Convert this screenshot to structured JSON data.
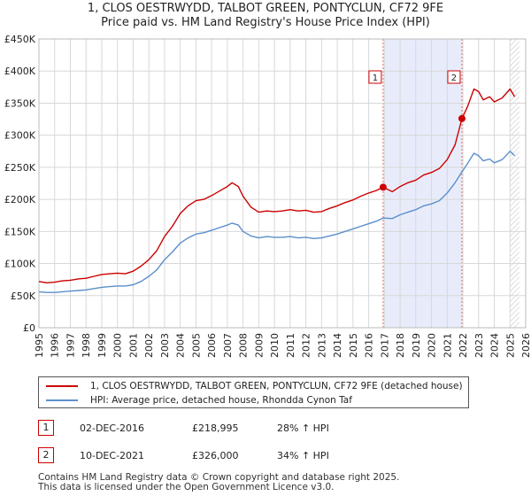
{
  "header": {
    "title_line1": "1, CLOS OESTRWYDD, TALBOT GREEN, PONTYCLUN, CF72 9FE",
    "title_line2": "Price paid vs. HM Land Registry's House Price Index (HPI)"
  },
  "chart_data": {
    "type": "line",
    "title": "Price paid vs. HM Land Registry's House Price Index (HPI)",
    "xlim": [
      1995,
      2026
    ],
    "ylim": [
      0,
      450000
    ],
    "x_ticks": [
      1995,
      1996,
      1997,
      1998,
      1999,
      2000,
      2001,
      2002,
      2003,
      2004,
      2005,
      2006,
      2007,
      2008,
      2009,
      2010,
      2011,
      2012,
      2013,
      2014,
      2015,
      2016,
      2017,
      2018,
      2019,
      2020,
      2021,
      2022,
      2023,
      2024,
      2025,
      2026
    ],
    "x_tick_labels": [
      "1995",
      "1996",
      "1997",
      "1998",
      "1999",
      "2000",
      "2001",
      "2002",
      "2003",
      "2004",
      "2005",
      "2006",
      "2007",
      "2008",
      "2009",
      "2010",
      "2011",
      "2012",
      "2013",
      "2014",
      "2015",
      "2016",
      "2017",
      "2018",
      "2019",
      "2020",
      "2021",
      "2022",
      "2023",
      "2024",
      "2025",
      "2026"
    ],
    "y_ticks": [
      0,
      50000,
      100000,
      150000,
      200000,
      250000,
      300000,
      350000,
      400000,
      450000
    ],
    "y_tick_labels": [
      "£0",
      "£50K",
      "£100K",
      "£150K",
      "£200K",
      "£250K",
      "£300K",
      "£350K",
      "£400K",
      "£450K"
    ],
    "grid": true,
    "shaded_periods": [
      {
        "label": "1",
        "from": 2016.92,
        "to": 2021.94
      },
      {
        "label": "hatched",
        "from": 2025.0,
        "to": 2025.6
      }
    ],
    "series": [
      {
        "name": "1, CLOS OESTRWYDD, TALBOT GREEN, PONTYCLUN, CF72 9FE (detached house)",
        "color": "#cc0000",
        "x": [
          1995,
          1995.5,
          1996,
          1996.5,
          1997,
          1997.5,
          1998,
          1998.5,
          1999,
          1999.5,
          2000,
          2000.5,
          2001,
          2001.5,
          2002,
          2002.5,
          2003,
          2003.5,
          2004,
          2004.5,
          2005,
          2005.5,
          2006,
          2006.5,
          2007,
          2007.3,
          2007.7,
          2008,
          2008.5,
          2009,
          2009.5,
          2010,
          2010.5,
          2011,
          2011.5,
          2012,
          2012.5,
          2013,
          2013.5,
          2014,
          2014.5,
          2015,
          2015.5,
          2016,
          2016.5,
          2016.92,
          2017.5,
          2018,
          2018.5,
          2019,
          2019.5,
          2020,
          2020.5,
          2021,
          2021.5,
          2021.94,
          2022.3,
          2022.7,
          2023,
          2023.3,
          2023.7,
          2024,
          2024.5,
          2025,
          2025.3
        ],
        "values": [
          72000,
          70000,
          71000,
          73000,
          74000,
          76000,
          77000,
          80000,
          83000,
          84000,
          85000,
          84000,
          88000,
          96000,
          106000,
          120000,
          142000,
          158000,
          178000,
          190000,
          198000,
          200000,
          206000,
          213000,
          220000,
          226000,
          220000,
          205000,
          188000,
          180000,
          182000,
          181000,
          182000,
          184000,
          182000,
          183000,
          180000,
          181000,
          186000,
          190000,
          195000,
          199000,
          205000,
          210000,
          214000,
          218995,
          212000,
          220000,
          226000,
          230000,
          238000,
          242000,
          248000,
          262000,
          285000,
          326000,
          345000,
          372000,
          368000,
          355000,
          360000,
          352000,
          358000,
          372000,
          360000
        ]
      },
      {
        "name": "HPI: Average price, detached house, Rhondda Cynon Taf",
        "color": "#5b8fcc",
        "x": [
          1995,
          1995.5,
          1996,
          1996.5,
          1997,
          1997.5,
          1998,
          1998.5,
          1999,
          1999.5,
          2000,
          2000.5,
          2001,
          2001.5,
          2002,
          2002.5,
          2003,
          2003.5,
          2004,
          2004.5,
          2005,
          2005.5,
          2006,
          2006.5,
          2007,
          2007.3,
          2007.7,
          2008,
          2008.5,
          2009,
          2009.5,
          2010,
          2010.5,
          2011,
          2011.5,
          2012,
          2012.5,
          2013,
          2013.5,
          2014,
          2014.5,
          2015,
          2015.5,
          2016,
          2016.5,
          2016.92,
          2017.5,
          2018,
          2018.5,
          2019,
          2019.5,
          2020,
          2020.5,
          2021,
          2021.5,
          2021.94,
          2022.3,
          2022.7,
          2023,
          2023.3,
          2023.7,
          2024,
          2024.5,
          2025,
          2025.3
        ],
        "values": [
          56000,
          55000,
          55000,
          56000,
          57000,
          58000,
          59000,
          61000,
          63000,
          64000,
          65000,
          65000,
          67000,
          72000,
          80000,
          90000,
          106000,
          118000,
          132000,
          140000,
          146000,
          148000,
          152000,
          156000,
          160000,
          163000,
          160000,
          150000,
          143000,
          140000,
          142000,
          141000,
          141000,
          142000,
          140000,
          141000,
          139000,
          140000,
          143000,
          146000,
          150000,
          154000,
          158000,
          162000,
          166000,
          171000,
          170000,
          176000,
          180000,
          184000,
          190000,
          193000,
          198000,
          210000,
          226000,
          243000,
          256000,
          272000,
          268000,
          260000,
          263000,
          257000,
          262000,
          275000,
          268000
        ]
      }
    ],
    "annotations": [
      {
        "label": "1",
        "x": 2016.92,
        "y": 218995
      },
      {
        "label": "2",
        "x": 2021.94,
        "y": 326000
      }
    ]
  },
  "legend": {
    "items": [
      {
        "label": "1, CLOS OESTRWYDD, TALBOT GREEN, PONTYCLUN, CF72 9FE (detached house)",
        "color": "#cc0000"
      },
      {
        "label": "HPI: Average price, detached house, Rhondda Cynon Taf",
        "color": "#5b8fcc"
      }
    ]
  },
  "sales": [
    {
      "badge": "1",
      "date": "02-DEC-2016",
      "price": "£218,995",
      "hpi": "28% ↑ HPI"
    },
    {
      "badge": "2",
      "date": "10-DEC-2021",
      "price": "£326,000",
      "hpi": "34% ↑ HPI"
    }
  ],
  "footer": {
    "line1": "Contains HM Land Registry data © Crown copyright and database right 2025.",
    "line2": "This data is licensed under the Open Government Licence v3.0."
  }
}
